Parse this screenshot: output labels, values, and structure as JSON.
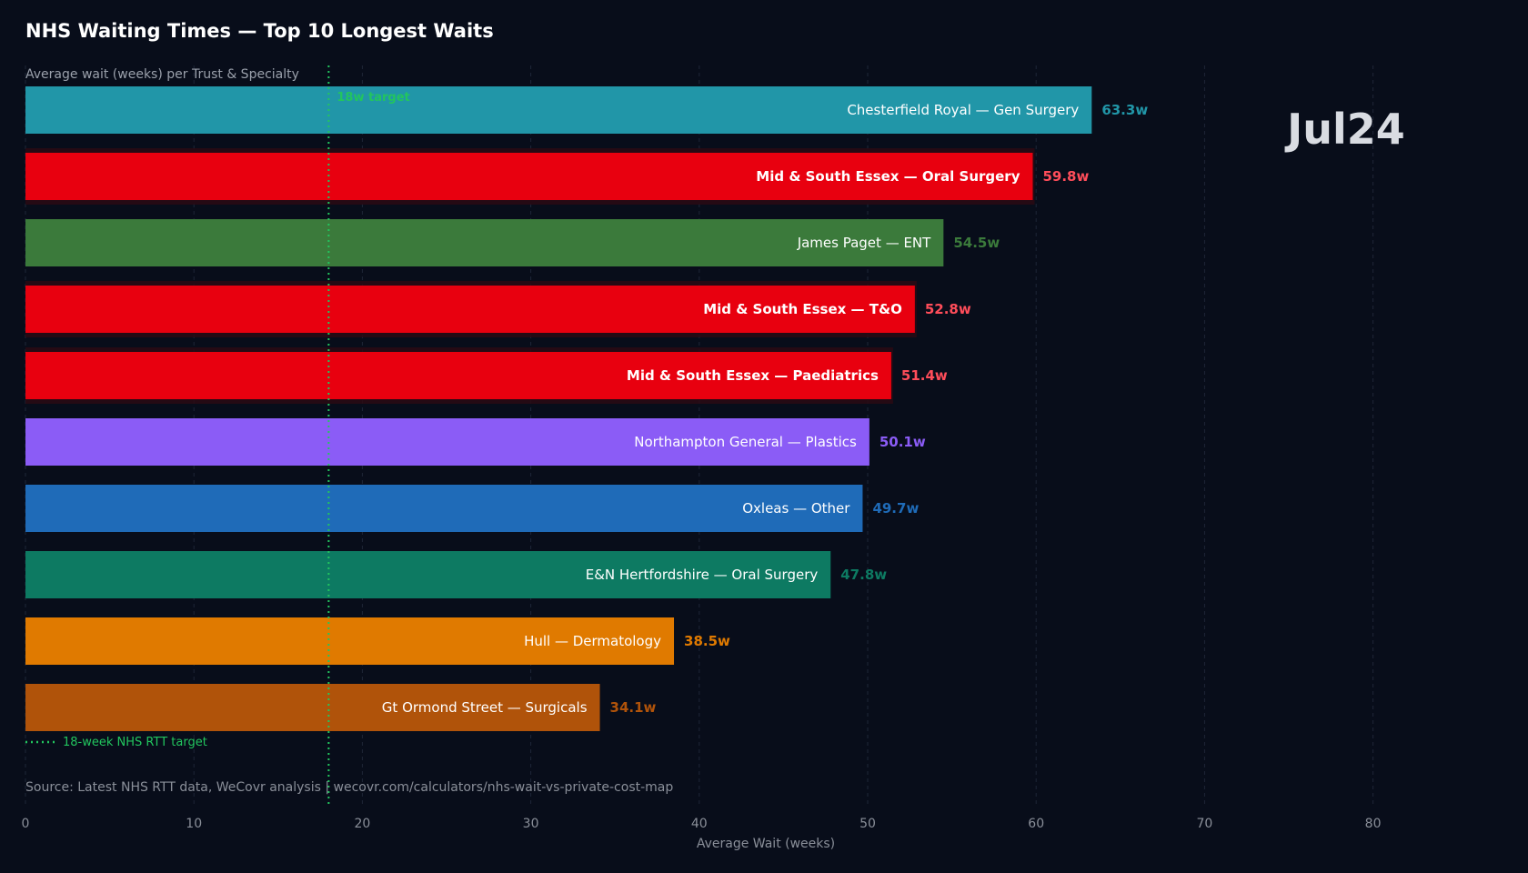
{
  "chart_data": {
    "type": "bar",
    "orientation": "horizontal",
    "title": "NHS Waiting Times — Top 10 Longest Waits",
    "subtitle": "Average wait (weeks) per Trust & Specialty",
    "xlabel": "Average Wait (weeks)",
    "xlim": [
      0,
      88
    ],
    "xticks": [
      0,
      10,
      20,
      30,
      40,
      50,
      60,
      70,
      80
    ],
    "grid": true,
    "period_label": "Jul24",
    "target": {
      "value": 18,
      "label": "18w target",
      "legend": "18-week NHS RTT target",
      "color": "#22c55e"
    },
    "source": "Source: Latest NHS RTT data, WeCovr analysis  |  wecovr.com/calculators/nhs-wait-vs-private-cost-map",
    "bars": [
      {
        "label": "Chesterfield Royal — Gen Surgery",
        "value": 63.3,
        "value_label": "63.3w",
        "color": "#2196a8",
        "value_color": "#2196a8",
        "highlight": false
      },
      {
        "label": "Mid & South Essex — Oral Surgery",
        "value": 59.8,
        "value_label": "59.8w",
        "color": "#e8000f",
        "value_color": "#ff4d5a",
        "highlight": true
      },
      {
        "label": "James Paget — ENT",
        "value": 54.5,
        "value_label": "54.5w",
        "color": "#3b7a3b",
        "value_color": "#3b7a3b",
        "highlight": false
      },
      {
        "label": "Mid & South Essex — T&O",
        "value": 52.8,
        "value_label": "52.8w",
        "color": "#e8000f",
        "value_color": "#ff4d5a",
        "highlight": true
      },
      {
        "label": "Mid & South Essex — Paediatrics",
        "value": 51.4,
        "value_label": "51.4w",
        "color": "#e8000f",
        "value_color": "#ff4d5a",
        "highlight": true
      },
      {
        "label": "Northampton General — Plastics",
        "value": 50.1,
        "value_label": "50.1w",
        "color": "#8b5cf6",
        "value_color": "#8b5cf6",
        "highlight": false
      },
      {
        "label": "Oxleas — Other",
        "value": 49.7,
        "value_label": "49.7w",
        "color": "#1f6bb8",
        "value_color": "#1f6bb8",
        "highlight": false
      },
      {
        "label": "E&N Hertfordshire — Oral Surgery",
        "value": 47.8,
        "value_label": "47.8w",
        "color": "#0d7a62",
        "value_color": "#0d7a62",
        "highlight": false
      },
      {
        "label": "Hull — Dermatology",
        "value": 38.5,
        "value_label": "38.5w",
        "color": "#e07a00",
        "value_color": "#e07a00",
        "highlight": false
      },
      {
        "label": "Gt Ormond Street — Surgicals",
        "value": 34.1,
        "value_label": "34.1w",
        "color": "#b0530a",
        "value_color": "#b0530a",
        "highlight": false
      }
    ]
  }
}
